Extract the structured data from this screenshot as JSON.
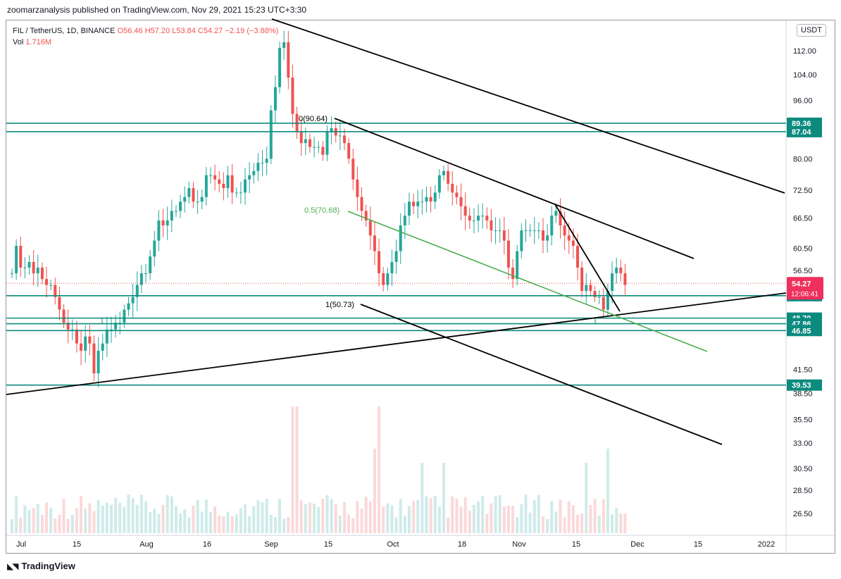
{
  "header": {
    "published": "zoomarzanalysis published on TradingView.com, Nov 29, 2021 15:23 UTC+3:30"
  },
  "legend": {
    "symbol": "FIL / TetherUS, 1D, BINANCE",
    "ohlc": "O56.46 H57.20 L53.84 C54.27 −2.19 (−3.88%)",
    "vol_label": "Vol",
    "vol_value": "1.716M"
  },
  "currency_button": "USDT",
  "footer": {
    "brand": "TradingView",
    "icon": "tradingview-logo-icon"
  },
  "colors": {
    "up": "#26a69a",
    "down": "#ef5350",
    "level": "#0b8a7e",
    "fib_green": "#4caf50",
    "trend": "#000000",
    "price_tag": "#ef2f5c"
  },
  "chart_data": {
    "type": "candlestick",
    "symbol": "FIL / TetherUS",
    "interval": "1D",
    "exchange": "BINANCE",
    "x_ticks": [
      "Jul",
      "15",
      "Aug",
      "16",
      "Sep",
      "15",
      "Oct",
      "18",
      "Nov",
      "15",
      "Dec",
      "15",
      "2022"
    ],
    "y_ticks": [
      "112.00",
      "104.00",
      "96.00",
      "80.00",
      "72.50",
      "66.50",
      "60.50",
      "56.50",
      "41.50",
      "38.50",
      "35.50",
      "33.00",
      "30.50",
      "28.50",
      "26.50"
    ],
    "y_axis_scale": "log",
    "last_price": {
      "value": "54.27",
      "countdown": "12:06:41"
    },
    "horizontal_levels": [
      "89.36",
      "87.04",
      "52.22",
      "48.70",
      "47.86",
      "46.85",
      "39.53"
    ],
    "fib_labels": [
      "0(90.64)",
      "0.5(70.68)",
      "1(50.73)"
    ],
    "closes": [
      56,
      61,
      57,
      57,
      58,
      56,
      57,
      55,
      54,
      54,
      52,
      50,
      48,
      47,
      47,
      45,
      44,
      46,
      45,
      41,
      44,
      45,
      47,
      47,
      48,
      48,
      50,
      51,
      52,
      54,
      56,
      56,
      59,
      62,
      66,
      65,
      66,
      68,
      68,
      70,
      71,
      73,
      70,
      70,
      71,
      76,
      76,
      75,
      74,
      73,
      76,
      72,
      72,
      72,
      75,
      76,
      77,
      79,
      79,
      80,
      93,
      100,
      113,
      115,
      103,
      92,
      87,
      84,
      85,
      83,
      83,
      83,
      81,
      87,
      88,
      86,
      86,
      84,
      80,
      75,
      71,
      68,
      66,
      63,
      60,
      56,
      54,
      56,
      58,
      60,
      65,
      67,
      70,
      69,
      70,
      70,
      71,
      70,
      72,
      76,
      77,
      74,
      72,
      71,
      69,
      67,
      66,
      66,
      67,
      67,
      66,
      64,
      64,
      64,
      62,
      57,
      55,
      60,
      64,
      64,
      64,
      64,
      64,
      62,
      63,
      67,
      68,
      65,
      63,
      62,
      61,
      57,
      53,
      54,
      53,
      52,
      52,
      50,
      53,
      56,
      57,
      56,
      54
    ],
    "volume": [
      "1.716M"
    ]
  }
}
